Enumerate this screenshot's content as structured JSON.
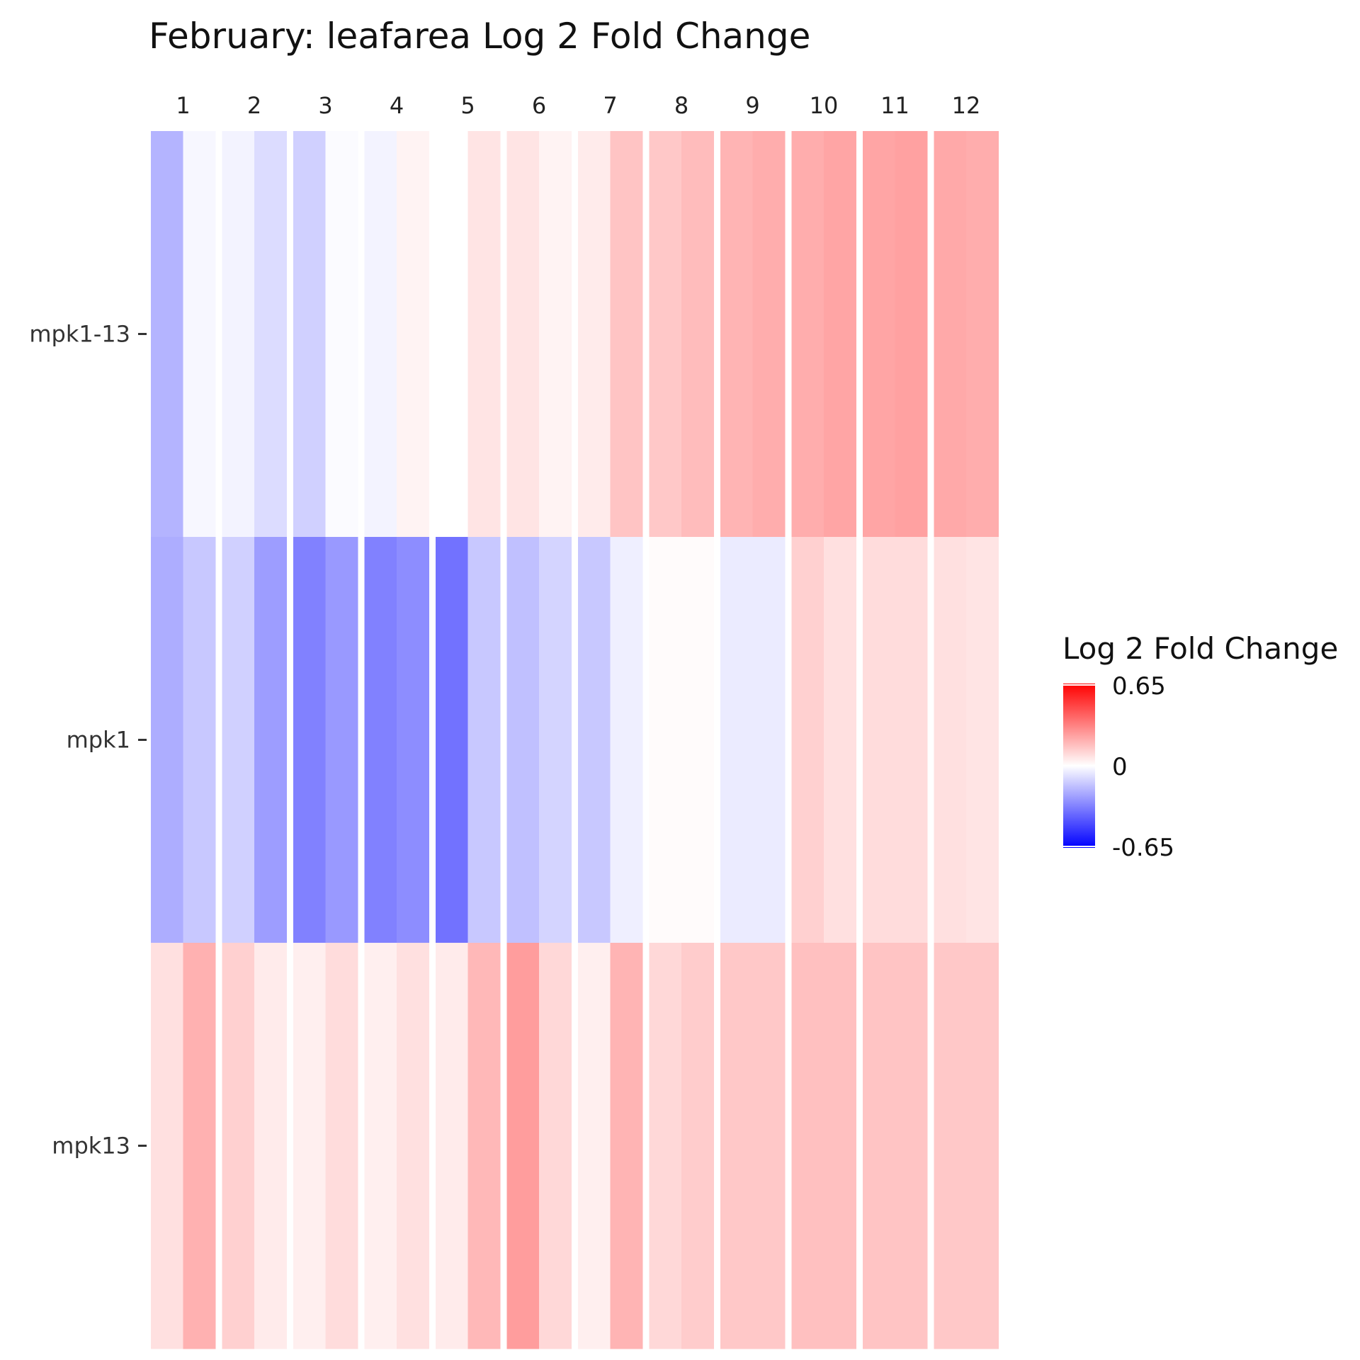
{
  "chart_data": {
    "type": "heatmap",
    "title": "February: leafarea Log 2 Fold Change",
    "columns": [
      "1",
      "2",
      "3",
      "4",
      "5",
      "6",
      "7",
      "8",
      "9",
      "10",
      "11",
      "12"
    ],
    "rows": [
      "mpk1-13",
      "mpk1",
      "mpk13"
    ],
    "subcolumns_per_column": 2,
    "values": [
      [
        -0.19,
        -0.02,
        -0.03,
        -0.09,
        -0.12,
        -0.01,
        -0.03,
        0.03,
        0.0,
        0.07,
        0.07,
        0.03,
        0.05,
        0.15,
        0.14,
        0.17,
        0.19,
        0.21,
        0.21,
        0.23,
        0.23,
        0.24,
        0.22,
        0.21
      ],
      [
        -0.21,
        -0.14,
        -0.12,
        -0.25,
        -0.32,
        -0.26,
        -0.32,
        -0.29,
        -0.36,
        -0.14,
        -0.16,
        -0.11,
        -0.14,
        -0.04,
        0.01,
        0.01,
        -0.05,
        -0.05,
        0.12,
        0.08,
        0.09,
        0.09,
        0.08,
        0.07
      ],
      [
        0.08,
        0.2,
        0.12,
        0.05,
        0.04,
        0.09,
        0.04,
        0.08,
        0.05,
        0.18,
        0.25,
        0.1,
        0.04,
        0.19,
        0.1,
        0.13,
        0.14,
        0.14,
        0.16,
        0.16,
        0.15,
        0.15,
        0.14,
        0.14
      ]
    ],
    "legend": {
      "title": "Log 2 Fold Change",
      "max_label": "0.65",
      "mid_label": "0",
      "min_label": "-0.65",
      "min": -0.65,
      "max": 0.65,
      "position": "right"
    },
    "colors": {
      "low": "#0000ff",
      "mid": "#ffffff",
      "high": "#ff0000",
      "background": "#ffffff"
    },
    "grid": false
  }
}
